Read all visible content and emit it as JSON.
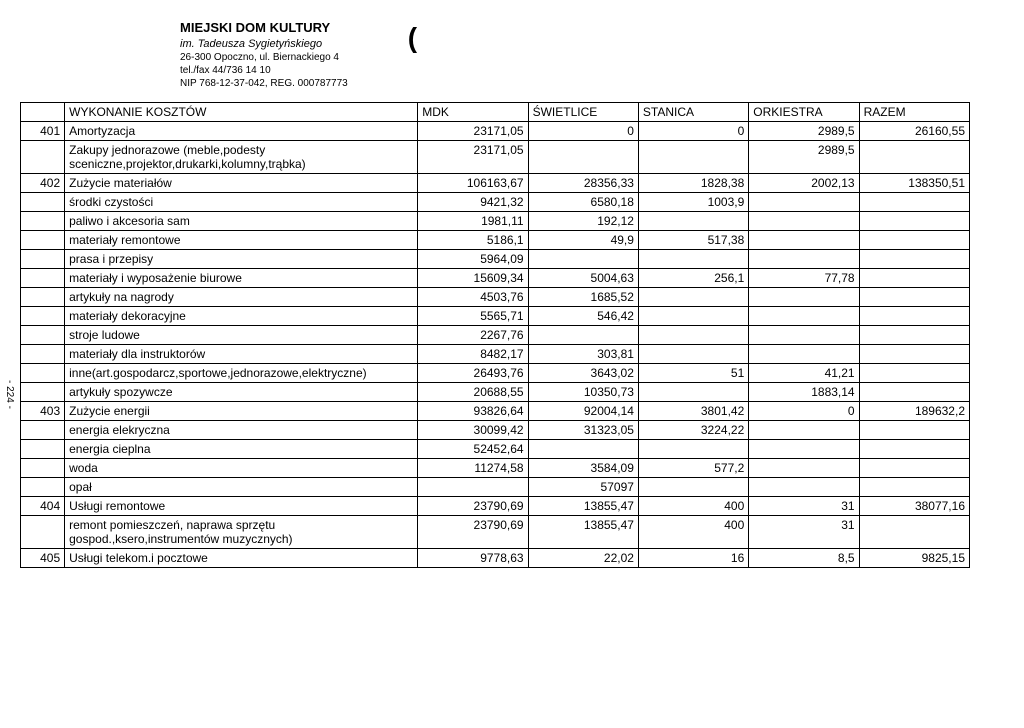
{
  "header": {
    "org_name": "MIEJSKI DOM KULTURY",
    "org_sub": "im. Tadeusza Sygietyńskiego",
    "addr1": "26-300 Opoczno, ul. Biernackiego 4",
    "addr2": "tel./fax 44/736 14 10",
    "addr3": "NIP 768-12-37-042, REG. 000787773",
    "stamp": "("
  },
  "page_marker": "- 224 -",
  "table": {
    "headers": [
      "",
      "WYKONANIE KOSZTÓW",
      "MDK",
      "ŚWIETLICE",
      "STANICA",
      "ORKIESTRA",
      "RAZEM"
    ],
    "rows": [
      {
        "code": "401",
        "desc": "Amortyzacja",
        "c": [
          "23171,05",
          "0",
          "0",
          "2989,5",
          "26160,55"
        ]
      },
      {
        "code": "",
        "desc": "Zakupy jednorazowe (meble,podesty sceniczne,projektor,drukarki,kolumny,trąbka)",
        "c": [
          "23171,05",
          "",
          "",
          "2989,5",
          ""
        ]
      },
      {
        "code": "402",
        "desc": "Zużycie materiałów",
        "c": [
          "106163,67",
          "28356,33",
          "1828,38",
          "2002,13",
          "138350,51"
        ]
      },
      {
        "code": "",
        "desc": "środki czystości",
        "c": [
          "9421,32",
          "6580,18",
          "1003,9",
          "",
          ""
        ]
      },
      {
        "code": "",
        "desc": "paliwo i akcesoria sam",
        "c": [
          "1981,11",
          "192,12",
          "",
          "",
          ""
        ]
      },
      {
        "code": "",
        "desc": "materiały remontowe",
        "c": [
          "5186,1",
          "49,9",
          "517,38",
          "",
          ""
        ]
      },
      {
        "code": "",
        "desc": "prasa i przepisy",
        "c": [
          "5964,09",
          "",
          "",
          "",
          ""
        ]
      },
      {
        "code": "",
        "desc": "materiały i wyposażenie biurowe",
        "c": [
          "15609,34",
          "5004,63",
          "256,1",
          "77,78",
          ""
        ]
      },
      {
        "code": "",
        "desc": "artykuły na nagrody",
        "c": [
          "4503,76",
          "1685,52",
          "",
          "",
          ""
        ]
      },
      {
        "code": "",
        "desc": "materiały dekoracyjne",
        "c": [
          "5565,71",
          "546,42",
          "",
          "",
          ""
        ]
      },
      {
        "code": "",
        "desc": "stroje ludowe",
        "c": [
          "2267,76",
          "",
          "",
          "",
          ""
        ]
      },
      {
        "code": "",
        "desc": "materiały dla instruktorów",
        "c": [
          "8482,17",
          "303,81",
          "",
          "",
          ""
        ]
      },
      {
        "code": "",
        "desc": "inne(art.gospodarcz,sportowe,jednorazowe,elektryczne)",
        "c": [
          "26493,76",
          "3643,02",
          "51",
          "41,21",
          ""
        ]
      },
      {
        "code": "",
        "desc": "artykuły spozywcze",
        "c": [
          "20688,55",
          "10350,73",
          "",
          "1883,14",
          ""
        ]
      },
      {
        "code": "403",
        "desc": "Zużycie energii",
        "c": [
          "93826,64",
          "92004,14",
          "3801,42",
          "0",
          "189632,2"
        ]
      },
      {
        "code": "",
        "desc": "energia elekryczna",
        "c": [
          "30099,42",
          "31323,05",
          "3224,22",
          "",
          ""
        ]
      },
      {
        "code": "",
        "desc": "energia cieplna",
        "c": [
          "52452,64",
          "",
          "",
          "",
          ""
        ]
      },
      {
        "code": "",
        "desc": "woda",
        "c": [
          "11274,58",
          "3584,09",
          "577,2",
          "",
          ""
        ]
      },
      {
        "code": "",
        "desc": "opał",
        "c": [
          "",
          "57097",
          "",
          "",
          ""
        ]
      },
      {
        "code": "404",
        "desc": "Usługi remontowe",
        "c": [
          "23790,69",
          "13855,47",
          "400",
          "31",
          "38077,16"
        ]
      },
      {
        "code": "",
        "desc": "remont pomieszczeń, naprawa sprzętu gospod.,ksero,instrumentów muzycznych)",
        "c": [
          "23790,69",
          "13855,47",
          "400",
          "31",
          ""
        ]
      },
      {
        "code": "405",
        "desc": "Usługi telekom.i pocztowe",
        "c": [
          "9778,63",
          "22,02",
          "16",
          "8,5",
          "9825,15"
        ]
      }
    ]
  }
}
